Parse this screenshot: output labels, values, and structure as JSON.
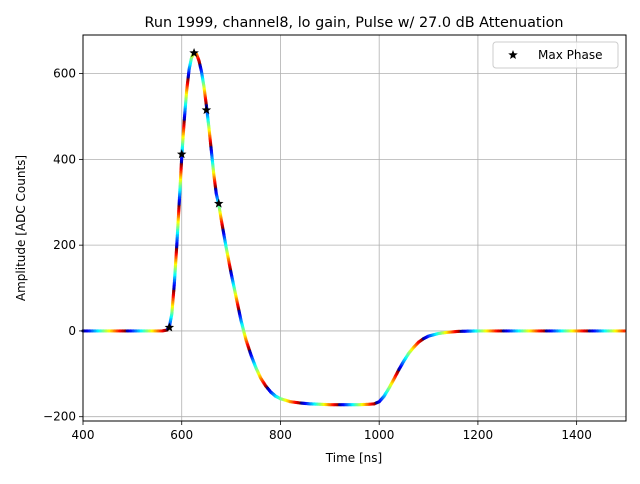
{
  "chart_data": {
    "type": "scatter",
    "title": "Run 1999, channel8, lo gain, Pulse w/ 27.0 dB Attenuation",
    "xlabel": "Time [ns]",
    "ylabel": "Amplitude [ADC Counts]",
    "xlim": [
      400,
      1500
    ],
    "ylim": [
      -210,
      690
    ],
    "xticks": [
      400,
      600,
      800,
      1000,
      1200,
      1400
    ],
    "yticks": [
      -200,
      0,
      200,
      400,
      600
    ],
    "grid": true,
    "legend": {
      "placement": "top-right",
      "entries": [
        "Max Phase"
      ]
    },
    "colormap": "jet",
    "series": [
      {
        "name": "",
        "kind": "dense-colored-samples",
        "points": [
          [
            400,
            0
          ],
          [
            560,
            0
          ],
          [
            570,
            2
          ],
          [
            575,
            10
          ],
          [
            580,
            40
          ],
          [
            585,
            110
          ],
          [
            590,
            200
          ],
          [
            595,
            300
          ],
          [
            600,
            405
          ],
          [
            605,
            490
          ],
          [
            610,
            560
          ],
          [
            615,
            610
          ],
          [
            620,
            638
          ],
          [
            625,
            648
          ],
          [
            630,
            645
          ],
          [
            635,
            630
          ],
          [
            640,
            605
          ],
          [
            645,
            570
          ],
          [
            650,
            525
          ],
          [
            655,
            475
          ],
          [
            660,
            420
          ],
          [
            665,
            365
          ],
          [
            670,
            320
          ],
          [
            675,
            295
          ],
          [
            680,
            260
          ],
          [
            690,
            195
          ],
          [
            700,
            135
          ],
          [
            710,
            80
          ],
          [
            720,
            25
          ],
          [
            730,
            -20
          ],
          [
            740,
            -55
          ],
          [
            750,
            -85
          ],
          [
            760,
            -110
          ],
          [
            770,
            -128
          ],
          [
            780,
            -142
          ],
          [
            790,
            -152
          ],
          [
            800,
            -158
          ],
          [
            820,
            -165
          ],
          [
            840,
            -168
          ],
          [
            860,
            -170
          ],
          [
            880,
            -171
          ],
          [
            900,
            -172
          ],
          [
            920,
            -172
          ],
          [
            940,
            -172
          ],
          [
            960,
            -172
          ],
          [
            980,
            -171
          ],
          [
            990,
            -170
          ],
          [
            1000,
            -165
          ],
          [
            1010,
            -152
          ],
          [
            1020,
            -133
          ],
          [
            1030,
            -112
          ],
          [
            1040,
            -90
          ],
          [
            1050,
            -70
          ],
          [
            1060,
            -52
          ],
          [
            1070,
            -38
          ],
          [
            1080,
            -26
          ],
          [
            1090,
            -18
          ],
          [
            1100,
            -12
          ],
          [
            1120,
            -6
          ],
          [
            1140,
            -3
          ],
          [
            1160,
            -1
          ],
          [
            1200,
            0
          ],
          [
            1500,
            0
          ]
        ]
      },
      {
        "name": "Max Phase",
        "kind": "markers",
        "marker": "star",
        "color": "#000000",
        "points": [
          [
            575,
            8
          ],
          [
            600,
            412
          ],
          [
            625,
            648
          ],
          [
            650,
            515
          ],
          [
            675,
            297
          ]
        ]
      }
    ]
  }
}
